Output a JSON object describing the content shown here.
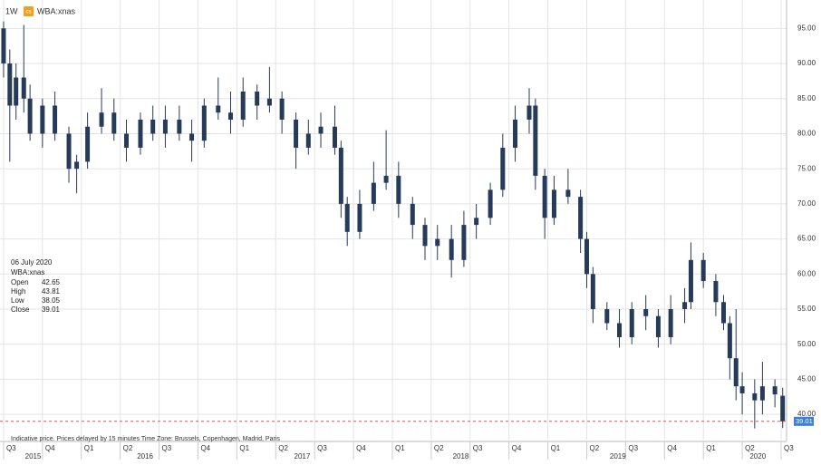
{
  "toolbar": {
    "interval": "1W",
    "icon": "cs",
    "symbol": "WBA:xnas"
  },
  "info": {
    "date": "06 July 2020",
    "labels": [
      "Open",
      "High",
      "Low",
      "Close"
    ]
  },
  "footer": "Indicative price. Prices delayed by 15 minutes   Time Zone: Brussels, Copenhagen, Madrid, Paris",
  "chart_data": {
    "type": "candlestick",
    "color": "#263a5a",
    "last_line_color": "#e05555",
    "last_label_color": "#3a7fd5",
    "grid": true,
    "xlim": [
      2015.477,
      2020.535
    ],
    "ylim": [
      36.4,
      98.4
    ],
    "yticks": [
      {
        "value": 40,
        "label": "40.00"
      },
      {
        "value": 45,
        "label": "45.00"
      },
      {
        "value": 50,
        "label": "50.00"
      },
      {
        "value": 55,
        "label": "55.00"
      },
      {
        "value": 60,
        "label": "60.00"
      },
      {
        "value": 65,
        "label": "65.00"
      },
      {
        "value": 70,
        "label": "70.00"
      },
      {
        "value": 75,
        "label": "75.00"
      },
      {
        "value": 80,
        "label": "80.00"
      },
      {
        "value": 85,
        "label": "85.00"
      },
      {
        "value": 90,
        "label": "90.00"
      },
      {
        "value": 95,
        "label": "95.00"
      }
    ],
    "xticks": [
      {
        "value": 2015.5,
        "label": "Q3"
      },
      {
        "value": 2015.75,
        "label": "Q4"
      },
      {
        "value": 2016.0,
        "label": "Q1"
      },
      {
        "value": 2016.25,
        "label": "Q2"
      },
      {
        "value": 2016.5,
        "label": "Q3"
      },
      {
        "value": 2016.75,
        "label": "Q4"
      },
      {
        "value": 2017.0,
        "label": "Q1"
      },
      {
        "value": 2017.25,
        "label": "Q2"
      },
      {
        "value": 2017.5,
        "label": "Q3"
      },
      {
        "value": 2017.75,
        "label": "Q4"
      },
      {
        "value": 2018.0,
        "label": "Q1"
      },
      {
        "value": 2018.25,
        "label": "Q2"
      },
      {
        "value": 2018.5,
        "label": "Q3"
      },
      {
        "value": 2018.75,
        "label": "Q4"
      },
      {
        "value": 2019.0,
        "label": "Q1"
      },
      {
        "value": 2019.25,
        "label": "Q2"
      },
      {
        "value": 2019.5,
        "label": "Q3"
      },
      {
        "value": 2019.75,
        "label": "Q4"
      },
      {
        "value": 2020.0,
        "label": "Q1"
      },
      {
        "value": 2020.25,
        "label": "Q2"
      },
      {
        "value": 2020.5,
        "label": "Q3"
      }
    ],
    "year_ticks": [
      {
        "value": 2015.69,
        "label": "2015"
      },
      {
        "value": 2016.41,
        "label": "2016"
      },
      {
        "value": 2017.42,
        "label": "2017"
      },
      {
        "value": 2018.44,
        "label": "2018"
      },
      {
        "value": 2019.45,
        "label": "2019"
      },
      {
        "value": 2020.35,
        "label": "2020"
      }
    ],
    "x": [
      2015.5,
      2015.54,
      2015.58,
      2015.63,
      2015.67,
      2015.75,
      2015.83,
      2015.92,
      2015.97,
      2016.04,
      2016.13,
      2016.21,
      2016.29,
      2016.38,
      2016.46,
      2016.54,
      2016.63,
      2016.71,
      2016.79,
      2016.88,
      2016.96,
      2017.04,
      2017.13,
      2017.21,
      2017.29,
      2017.38,
      2017.46,
      2017.54,
      2017.63,
      2017.67,
      2017.71,
      2017.79,
      2017.88,
      2017.96,
      2018.04,
      2018.13,
      2018.21,
      2018.29,
      2018.38,
      2018.46,
      2018.54,
      2018.63,
      2018.71,
      2018.79,
      2018.88,
      2018.92,
      2018.98,
      2019.04,
      2019.13,
      2019.21,
      2019.25,
      2019.29,
      2019.38,
      2019.46,
      2019.54,
      2019.63,
      2019.71,
      2019.79,
      2019.88,
      2019.92,
      2020.0,
      2020.08,
      2020.13,
      2020.17,
      2020.21,
      2020.25,
      2020.33,
      2020.38,
      2020.46,
      2020.51
    ],
    "open": [
      95,
      90,
      84,
      88,
      85,
      80,
      84,
      80,
      75,
      76,
      81,
      83,
      80,
      78,
      82,
      80,
      82,
      80,
      79,
      84,
      83,
      82,
      86,
      84,
      85,
      82,
      78,
      80,
      81,
      78,
      70,
      66,
      70,
      73,
      74,
      70,
      67,
      64,
      65,
      62,
      67,
      68,
      72,
      78,
      82,
      84,
      74,
      68,
      72,
      71,
      65,
      60,
      55,
      53,
      51,
      55,
      54,
      51,
      55,
      56,
      62,
      59,
      56,
      53,
      48,
      44,
      43,
      42,
      44,
      42.65
    ],
    "high": [
      96,
      92,
      90,
      95.5,
      87,
      85,
      86,
      81,
      77,
      83,
      86.5,
      85,
      82,
      83,
      84,
      84,
      84,
      82,
      85,
      88,
      86,
      88,
      87,
      89.5,
      86,
      83,
      82,
      83,
      84,
      79,
      71,
      72,
      76,
      80.5,
      76,
      71,
      68,
      67,
      67,
      69,
      70,
      73,
      80,
      84,
      86.5,
      85,
      75,
      74,
      75,
      72,
      66,
      61,
      56,
      55,
      56,
      57,
      55,
      57,
      58,
      64.5,
      63,
      60,
      57,
      54,
      55,
      46,
      45,
      47.5,
      45,
      43.81
    ],
    "low": [
      88,
      76,
      82,
      83,
      79,
      78,
      79,
      73,
      71.5,
      75,
      80,
      79,
      76,
      77,
      79,
      78,
      79,
      76,
      78,
      82,
      80,
      81,
      82,
      83,
      80,
      75,
      77,
      78,
      77,
      68,
      64,
      65,
      69,
      72,
      68,
      65,
      62,
      62,
      59.5,
      61,
      65,
      67,
      71,
      76,
      80,
      72,
      65,
      67,
      70,
      63,
      58,
      53,
      52,
      49.5,
      50,
      52,
      49.5,
      50,
      53,
      55,
      58,
      54,
      52,
      45,
      42,
      40,
      38,
      40,
      41,
      38.05
    ],
    "close": [
      90,
      84,
      88,
      85,
      80,
      84,
      80,
      75,
      76,
      81,
      83,
      80,
      78,
      82,
      80,
      82,
      80,
      79,
      84,
      83,
      82,
      86,
      84,
      85,
      82,
      78,
      80,
      81,
      78,
      70,
      66,
      70,
      73,
      74,
      70,
      67,
      64,
      65,
      62,
      67,
      68,
      72,
      78,
      82,
      84,
      74,
      68,
      72,
      71,
      65,
      60,
      55,
      53,
      51,
      55,
      54,
      51,
      55,
      56,
      62,
      59,
      56,
      53,
      48,
      44,
      43,
      42,
      44,
      42.85,
      39.01
    ]
  }
}
